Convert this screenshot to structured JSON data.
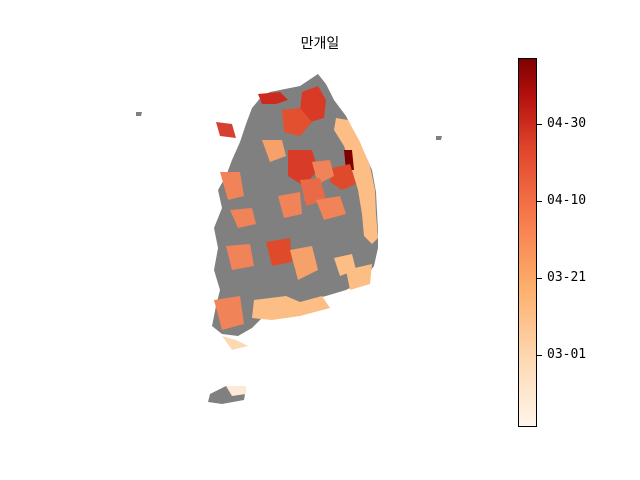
{
  "title": "만개일",
  "colorbar": {
    "ticks": [
      "03-01",
      "03-21",
      "04-10",
      "04-30"
    ],
    "colormap": [
      "#fff5eb",
      "#fdd9b3",
      "#fdae6b",
      "#f6774a",
      "#e0442b",
      "#b3100e",
      "#7f0000"
    ]
  },
  "colors": {
    "no_data": "#808080",
    "late": "#cc2a1e",
    "mid": "#f08358",
    "early": "#fdbe85",
    "very_early": "#fde9d6",
    "darkest": "#7f0000"
  }
}
